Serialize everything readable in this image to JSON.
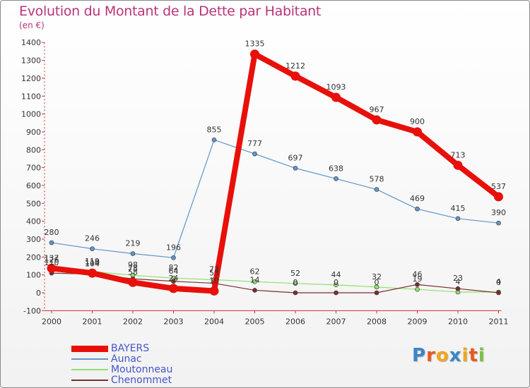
{
  "chart_data": {
    "type": "line",
    "title": "Evolution du Montant de la Dette par Habitant",
    "subtitle": "(en €)",
    "x": [
      "2000",
      "2001",
      "2002",
      "2003",
      "2004",
      "2005",
      "2006",
      "2007",
      "2008",
      "2009",
      "2010",
      "2011"
    ],
    "ylim": [
      -100,
      1400
    ],
    "yticks": [
      -100,
      0,
      100,
      200,
      300,
      400,
      500,
      600,
      700,
      800,
      900,
      1000,
      1100,
      1200,
      1300,
      1400
    ],
    "grid": false,
    "series": [
      {
        "name": "BAYERS",
        "color": "#e8100a",
        "values": [
          137,
          110,
          58,
          24,
          10,
          1335,
          1212,
          1093,
          967,
          900,
          713,
          537
        ],
        "labels": [
          "137",
          "110",
          "58",
          "24",
          "10",
          "1335",
          "1212",
          "1093",
          "967",
          "900",
          "713",
          "537"
        ]
      },
      {
        "name": "Aunac",
        "color": "#5f95c8",
        "values": [
          280,
          246,
          219,
          196,
          855,
          777,
          697,
          638,
          578,
          469,
          415,
          390
        ],
        "labels": [
          "280",
          "246",
          "219",
          "196",
          "855",
          "777",
          "697",
          "638",
          "578",
          "469",
          "415",
          "390"
        ]
      },
      {
        "name": "Moutonneau",
        "color": "#90e070",
        "values": [
          126,
          119,
          98,
          82,
          73,
          62,
          52,
          44,
          32,
          19,
          4,
          4
        ],
        "labels": [
          "126",
          "119",
          "98",
          "82",
          "73",
          "62",
          "52",
          "44",
          "32",
          "19",
          "4",
          "4"
        ]
      },
      {
        "name": "Chenommet",
        "color": "#7a2e2e",
        "values": [
          110,
          104,
          78,
          64,
          53,
          14,
          0,
          0,
          0,
          46,
          23,
          0
        ],
        "labels": [
          "110",
          "104",
          "78",
          "64",
          "53",
          "14",
          "0",
          "0",
          "0",
          "46",
          "23",
          "0"
        ]
      }
    ],
    "legend": [
      "BAYERS",
      "Aunac",
      "Moutonneau",
      "Chenommet"
    ]
  },
  "logo": {
    "text": "Proxiti",
    "colors": [
      "#3a86c8",
      "#e85a1c",
      "#f2a51c",
      "#3a86c8",
      "#f2a51c",
      "#e85a1c",
      "#7ac142"
    ]
  }
}
